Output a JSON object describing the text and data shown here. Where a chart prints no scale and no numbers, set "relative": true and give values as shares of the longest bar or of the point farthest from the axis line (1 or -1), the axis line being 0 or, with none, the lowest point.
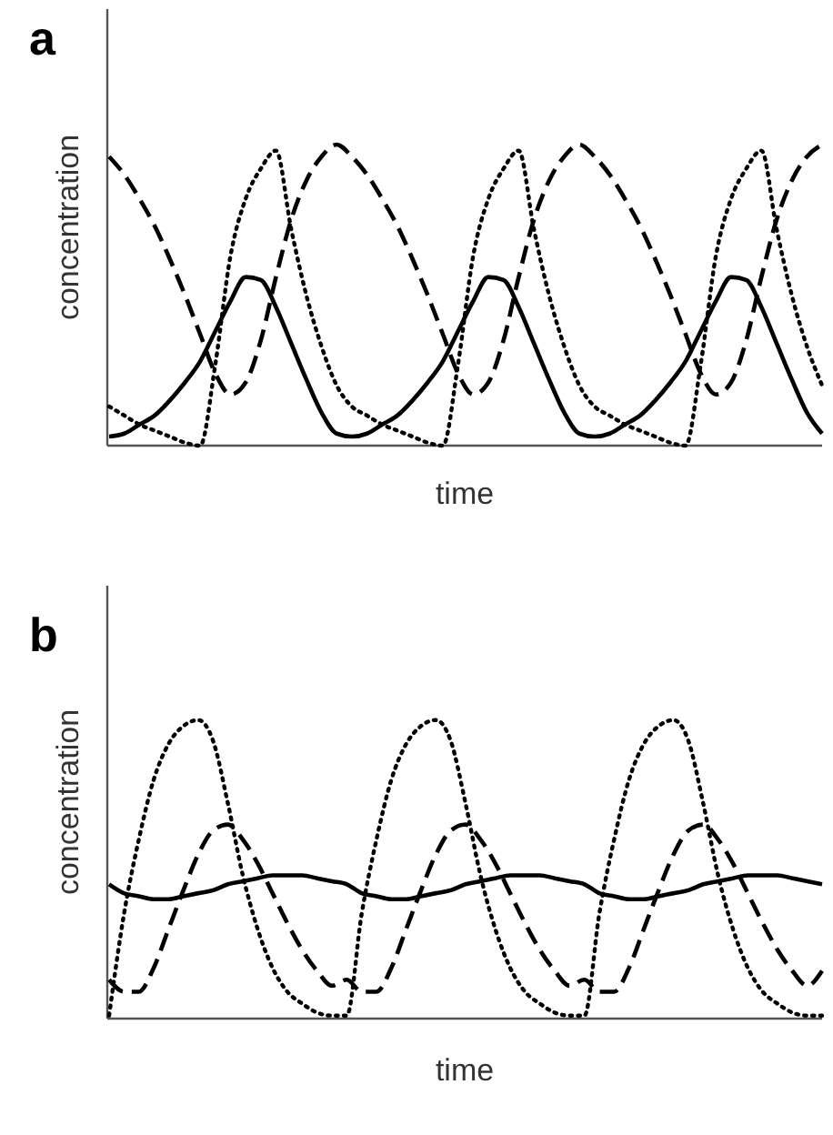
{
  "chart_data": [
    {
      "type": "line",
      "title": "a",
      "xlabel": "time",
      "ylabel": "concentration",
      "relative": true,
      "categories": [
        null,
        null,
        null,
        null,
        null,
        null,
        null,
        null,
        null,
        null,
        null,
        null,
        null,
        null,
        null,
        null,
        null,
        null,
        null,
        null,
        null,
        null,
        null,
        null,
        null,
        null,
        null,
        null,
        null,
        null,
        null,
        null,
        null,
        null,
        null,
        null,
        null,
        null,
        null,
        null,
        null,
        null,
        null,
        null,
        null,
        null,
        null,
        null
      ],
      "series": [
        {
          "color": "#000000",
          "line_style": "solid",
          "values": [
            0.03,
            0.04,
            0.07,
            0.1,
            0.15,
            0.21,
            0.28,
            0.38,
            0.48,
            0.56,
            0.55,
            0.46,
            0.34,
            0.22,
            0.11,
            0.04,
            0.03,
            0.04,
            0.07,
            0.1,
            0.15,
            0.21,
            0.28,
            0.38,
            0.48,
            0.56,
            0.55,
            0.46,
            0.34,
            0.22,
            0.11,
            0.04,
            0.03,
            0.04,
            0.07,
            0.1,
            0.15,
            0.21,
            0.28,
            0.38,
            0.48,
            0.56,
            0.55,
            0.46,
            0.34,
            0.22,
            0.11,
            0.04
          ]
        },
        {
          "color": "#000000",
          "line_style": "dashed",
          "values": [
            0.96,
            0.9,
            0.82,
            0.73,
            0.62,
            0.5,
            0.37,
            0.24,
            0.17,
            0.21,
            0.35,
            0.56,
            0.75,
            0.88,
            0.96,
            1.0,
            0.96,
            0.9,
            0.82,
            0.73,
            0.62,
            0.5,
            0.37,
            0.24,
            0.17,
            0.21,
            0.35,
            0.56,
            0.75,
            0.88,
            0.96,
            1.0,
            0.96,
            0.9,
            0.82,
            0.73,
            0.62,
            0.5,
            0.37,
            0.24,
            0.17,
            0.21,
            0.35,
            0.56,
            0.75,
            0.88,
            0.96,
            1.0
          ]
        },
        {
          "color": "#000000",
          "line_style": "dotted",
          "values": [
            0.13,
            0.1,
            0.07,
            0.05,
            0.03,
            0.01,
            0,
            0.27,
            0.63,
            0.82,
            0.92,
            0.98,
            0.72,
            0.5,
            0.33,
            0.2,
            0.13,
            0.1,
            0.07,
            0.05,
            0.03,
            0.01,
            0,
            0.27,
            0.63,
            0.82,
            0.92,
            0.98,
            0.72,
            0.5,
            0.33,
            0.2,
            0.13,
            0.1,
            0.07,
            0.05,
            0.03,
            0.01,
            0,
            0.27,
            0.63,
            0.82,
            0.92,
            0.98,
            0.72,
            0.5,
            0.33,
            0.2
          ]
        }
      ]
    },
    {
      "type": "line",
      "title": "b",
      "xlabel": "time",
      "ylabel": "concentration",
      "relative": true,
      "categories": [
        null,
        null,
        null,
        null,
        null,
        null,
        null,
        null,
        null,
        null,
        null,
        null,
        null,
        null,
        null,
        null,
        null,
        null,
        null,
        null,
        null,
        null,
        null,
        null,
        null,
        null,
        null,
        null,
        null,
        null,
        null,
        null,
        null,
        null,
        null,
        null,
        null,
        null,
        null,
        null,
        null,
        null,
        null,
        null,
        null,
        null,
        null,
        null,
        null
      ],
      "series": [
        {
          "color": "#000000",
          "line_style": "solid",
          "values": [
            0.45,
            0.42,
            0.41,
            0.4,
            0.4,
            0.41,
            0.42,
            0.43,
            0.45,
            0.46,
            0.47,
            0.48,
            0.48,
            0.48,
            0.47,
            0.46,
            0.45,
            0.42,
            0.41,
            0.4,
            0.4,
            0.41,
            0.42,
            0.43,
            0.45,
            0.46,
            0.47,
            0.48,
            0.48,
            0.48,
            0.47,
            0.46,
            0.45,
            0.42,
            0.41,
            0.4,
            0.4,
            0.41,
            0.42,
            0.43,
            0.45,
            0.46,
            0.47,
            0.48,
            0.48,
            0.48,
            0.47,
            0.46,
            0.45
          ]
        },
        {
          "color": "#000000",
          "line_style": "dashed",
          "values": [
            0.13,
            0.09,
            0.09,
            0.17,
            0.3,
            0.43,
            0.55,
            0.63,
            0.65,
            0.6,
            0.52,
            0.42,
            0.32,
            0.23,
            0.16,
            0.11,
            0.13,
            0.09,
            0.09,
            0.17,
            0.3,
            0.43,
            0.55,
            0.63,
            0.65,
            0.6,
            0.52,
            0.42,
            0.32,
            0.23,
            0.16,
            0.11,
            0.13,
            0.09,
            0.09,
            0.17,
            0.3,
            0.43,
            0.55,
            0.63,
            0.65,
            0.6,
            0.52,
            0.42,
            0.32,
            0.23,
            0.16,
            0.11,
            0.16
          ]
        },
        {
          "color": "#000000",
          "line_style": "dotted",
          "values": [
            0.01,
            0.35,
            0.6,
            0.8,
            0.92,
            0.98,
            1.0,
            0.93,
            0.72,
            0.48,
            0.3,
            0.17,
            0.09,
            0.05,
            0.02,
            0.01,
            0.01,
            0.35,
            0.6,
            0.8,
            0.92,
            0.98,
            1.0,
            0.93,
            0.72,
            0.48,
            0.3,
            0.17,
            0.09,
            0.05,
            0.02,
            0.01,
            0.01,
            0.35,
            0.6,
            0.8,
            0.92,
            0.98,
            1.0,
            0.93,
            0.72,
            0.48,
            0.3,
            0.17,
            0.09,
            0.05,
            0.02,
            0.01,
            0.01
          ]
        }
      ]
    }
  ]
}
